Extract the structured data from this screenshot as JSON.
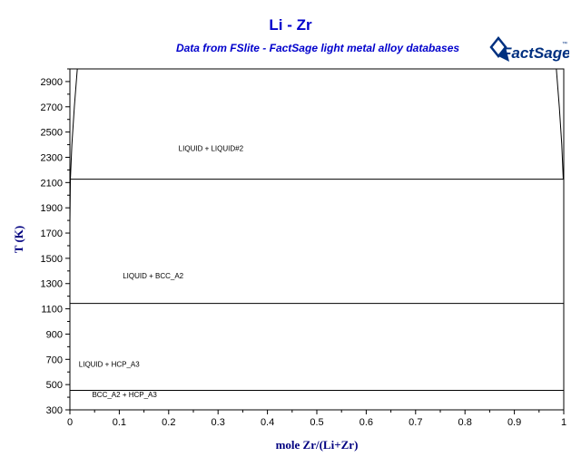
{
  "colors": {
    "title": "#0000cc",
    "axis_label": "#000080",
    "logo": "#003080",
    "line": "#000000"
  },
  "logo": {
    "brand": "FactSage",
    "trademark": "™"
  },
  "chart_data": {
    "type": "line",
    "title": "Li - Zr",
    "subtitle": "Data from FSlite - FactSage light metal alloy databases",
    "xlabel": "mole Zr/(Li+Zr)",
    "ylabel": "T (K)",
    "xlim": [
      0,
      1
    ],
    "ylim": [
      300,
      3000
    ],
    "x_ticks": [
      0,
      0.1,
      0.2,
      0.3,
      0.4,
      0.5,
      0.6,
      0.7,
      0.8,
      0.9,
      1
    ],
    "x_tick_labels": [
      "0",
      "0.1",
      "0.2",
      "0.3",
      "0.4",
      "0.5",
      "0.6",
      "0.7",
      "0.8",
      "0.9",
      "1"
    ],
    "y_ticks": [
      300,
      500,
      700,
      900,
      1100,
      1300,
      1500,
      1700,
      1900,
      2100,
      2300,
      2500,
      2700,
      2900
    ],
    "y_tick_labels": [
      "300",
      "500",
      "700",
      "900",
      "1100",
      "1300",
      "1500",
      "1700",
      "1900",
      "2100",
      "2300",
      "2500",
      "2700",
      "2900"
    ],
    "grid": false,
    "horizontal_lines": [
      {
        "y": 2127,
        "x": [
          0.001,
          1
        ]
      },
      {
        "y": 1143,
        "x": [
          0,
          1
        ]
      },
      {
        "y": 454,
        "x": [
          0,
          1
        ]
      }
    ],
    "curves": [
      {
        "points": [
          [
            0.0,
            1780
          ],
          [
            0.001,
            2127
          ],
          [
            0.004,
            2400
          ],
          [
            0.009,
            2700
          ],
          [
            0.015,
            3000
          ]
        ]
      },
      {
        "points": [
          [
            0.985,
            3000
          ],
          [
            0.991,
            2700
          ],
          [
            0.996,
            2400
          ],
          [
            0.999,
            2127
          ]
        ]
      }
    ],
    "regions": [
      {
        "label": "LIQUID + LIQUID#2",
        "x": 0.22,
        "y": 2350
      },
      {
        "label": "LIQUID + BCC_A2",
        "x": 0.107,
        "y": 1340
      },
      {
        "label": "LIQUID + HCP_A3",
        "x": 0.018,
        "y": 640
      },
      {
        "label": "BCC_A2 + HCP_A3",
        "x": 0.045,
        "y": 400
      }
    ]
  }
}
